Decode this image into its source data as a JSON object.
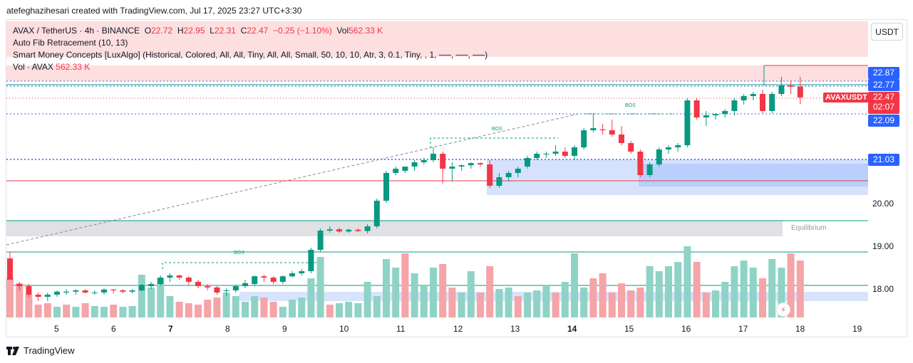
{
  "credit": "atefeghazihesari created with TradingView.com, Jul 17, 2025 23:27 UTC+3:30",
  "legend": {
    "symbol": "AVAX / TetherUS · 4h · BINANCE",
    "o_label": "O",
    "o_value": "22.72",
    "h_label": "H",
    "h_value": "22.95",
    "l_label": "L",
    "l_value": "22.31",
    "c_label": "C",
    "c_value": "22.47",
    "change": "−0.25 (−1.10%)",
    "vol_label": "Vol",
    "vol_value": "562.33 K",
    "indicator1": "Auto Fib Retracement (10, 13)",
    "indicator2": "Smart Money Concepts [LuxAlgo] (Historical, Colored, All, All, Tiny, All, All, Small, 50, 10, 10, Atr, 3, 0.1, Tiny, , 1, ──, ──, ──)",
    "indicator3_label": "Vol · AVAX",
    "indicator3_value": "562.33 K"
  },
  "currency_button": "USDT",
  "price_tags": {
    "p1": "22.87",
    "p2": "22.77",
    "last_symbol": "AVAXUSDT",
    "last_price": "22.47",
    "countdown": "02:07",
    "p3": "22.09",
    "p4": "21.03"
  },
  "y_axis_labels": [
    "20.00",
    "19.00",
    "18.00"
  ],
  "x_axis_labels": [
    {
      "text": "5",
      "bold": false
    },
    {
      "text": "6",
      "bold": false
    },
    {
      "text": "7",
      "bold": true
    },
    {
      "text": "8",
      "bold": false
    },
    {
      "text": "9",
      "bold": false
    },
    {
      "text": "10",
      "bold": false
    },
    {
      "text": "11",
      "bold": false
    },
    {
      "text": "12",
      "bold": false
    },
    {
      "text": "13",
      "bold": false
    },
    {
      "text": "14",
      "bold": true
    },
    {
      "text": "15",
      "bold": false
    },
    {
      "text": "16",
      "bold": false
    },
    {
      "text": "17",
      "bold": false
    },
    {
      "text": "18",
      "bold": false
    },
    {
      "text": "19",
      "bold": false
    }
  ],
  "annotations": {
    "equilibrium": "Equilibrium",
    "bos1": "BOS",
    "bos2": "BOS",
    "bos3": "BOS"
  },
  "brand": "TradingView",
  "colors": {
    "up": "#089981",
    "down": "#f23645",
    "up_vol": "#8fd3c6",
    "down_vol": "#f5a4a8",
    "premium_zone": "#fddfe0",
    "equilibrium_zone": "#e0e1e4",
    "order_block": "#c7d8fb",
    "accent_blue": "#2962ff"
  },
  "chart_data": {
    "type": "candlestick",
    "timeframe": "4h",
    "symbol": "AVAXUSDT",
    "ylim": [
      17.1,
      23.6
    ],
    "candles": [
      [
        18.7,
        18.85,
        18.2,
        18.2
      ],
      [
        18.1,
        18.15,
        17.95,
        18.05
      ],
      [
        18.05,
        18.1,
        17.8,
        17.85
      ],
      [
        17.85,
        17.9,
        17.7,
        17.8
      ],
      [
        17.8,
        17.9,
        17.7,
        17.85
      ],
      [
        17.85,
        17.95,
        17.8,
        17.92
      ],
      [
        17.9,
        17.98,
        17.85,
        17.92
      ],
      [
        17.92,
        17.98,
        17.85,
        17.95
      ],
      [
        17.95,
        17.98,
        17.88,
        17.9
      ],
      [
        17.9,
        17.95,
        17.85,
        17.9
      ],
      [
        17.9,
        18.0,
        17.85,
        17.97
      ],
      [
        17.97,
        17.99,
        17.88,
        17.95
      ],
      [
        17.95,
        17.98,
        17.88,
        17.92
      ],
      [
        17.92,
        17.98,
        17.88,
        17.95
      ],
      [
        17.95,
        18.1,
        17.93,
        18.08
      ],
      [
        18.05,
        18.15,
        17.98,
        18.1
      ],
      [
        18.1,
        18.3,
        18.05,
        18.25
      ],
      [
        18.25,
        18.35,
        18.15,
        18.3
      ],
      [
        18.3,
        18.32,
        18.2,
        18.25
      ],
      [
        18.25,
        18.28,
        18.08,
        18.15
      ],
      [
        18.15,
        18.2,
        18.0,
        18.05
      ],
      [
        18.05,
        18.1,
        17.95,
        18.02
      ],
      [
        18.02,
        18.05,
        17.85,
        17.9
      ],
      [
        17.95,
        18.0,
        17.82,
        17.95
      ],
      [
        17.95,
        18.08,
        17.9,
        18.05
      ],
      [
        18.05,
        18.2,
        18.0,
        18.12
      ],
      [
        18.1,
        18.3,
        18.05,
        18.28
      ],
      [
        18.28,
        18.32,
        18.15,
        18.25
      ],
      [
        18.25,
        18.28,
        18.1,
        18.15
      ],
      [
        18.15,
        18.3,
        18.1,
        18.28
      ],
      [
        18.28,
        18.4,
        18.25,
        18.35
      ],
      [
        18.35,
        18.45,
        18.3,
        18.4
      ],
      [
        18.4,
        18.95,
        18.35,
        18.9
      ],
      [
        18.9,
        19.4,
        18.85,
        19.35
      ],
      [
        19.35,
        19.45,
        19.3,
        19.38
      ],
      [
        19.38,
        19.42,
        19.3,
        19.33
      ],
      [
        19.33,
        19.4,
        19.3,
        19.37
      ],
      [
        19.37,
        19.4,
        19.32,
        19.34
      ],
      [
        19.34,
        19.5,
        19.28,
        19.45
      ],
      [
        19.45,
        20.1,
        19.4,
        20.05
      ],
      [
        20.05,
        20.75,
        20.0,
        20.7
      ],
      [
        20.7,
        20.85,
        20.65,
        20.8
      ],
      [
        20.75,
        20.85,
        20.7,
        20.85
      ],
      [
        20.85,
        21.0,
        20.75,
        20.95
      ],
      [
        20.95,
        21.05,
        20.9,
        21.0
      ],
      [
        21.0,
        21.3,
        20.95,
        21.15
      ],
      [
        21.15,
        21.2,
        20.45,
        20.8
      ],
      [
        20.8,
        20.95,
        20.5,
        20.85
      ],
      [
        20.85,
        20.9,
        20.75,
        20.88
      ],
      [
        20.88,
        20.95,
        20.8,
        20.93
      ],
      [
        20.93,
        20.95,
        20.85,
        20.9
      ],
      [
        20.9,
        21.0,
        20.35,
        20.4
      ],
      [
        20.4,
        20.7,
        20.35,
        20.6
      ],
      [
        20.6,
        20.75,
        20.5,
        20.7
      ],
      [
        20.7,
        20.85,
        20.6,
        20.8
      ],
      [
        20.85,
        21.1,
        20.8,
        21.05
      ],
      [
        21.05,
        21.2,
        21.0,
        21.15
      ],
      [
        21.15,
        21.2,
        21.05,
        21.15
      ],
      [
        21.15,
        21.35,
        21.1,
        21.2
      ],
      [
        21.2,
        21.3,
        21.05,
        21.1
      ],
      [
        21.1,
        21.35,
        21.0,
        21.3
      ],
      [
        21.3,
        21.75,
        21.25,
        21.7
      ],
      [
        21.7,
        22.1,
        21.65,
        21.75
      ],
      [
        21.72,
        21.85,
        21.6,
        21.7
      ],
      [
        21.7,
        21.95,
        21.55,
        21.6
      ],
      [
        21.6,
        21.8,
        21.35,
        21.4
      ],
      [
        21.4,
        21.45,
        21.15,
        21.2
      ],
      [
        21.2,
        21.25,
        20.6,
        20.65
      ],
      [
        20.65,
        20.95,
        20.6,
        20.9
      ],
      [
        20.9,
        21.3,
        20.85,
        21.25
      ],
      [
        21.25,
        21.35,
        21.15,
        21.3
      ],
      [
        21.3,
        21.4,
        21.2,
        21.35
      ],
      [
        21.35,
        22.45,
        21.3,
        22.4
      ],
      [
        22.4,
        22.45,
        21.95,
        22.0
      ],
      [
        22.0,
        22.15,
        21.8,
        22.05
      ],
      [
        22.05,
        22.1,
        21.95,
        22.08
      ],
      [
        22.08,
        22.2,
        22.0,
        22.15
      ],
      [
        22.15,
        22.45,
        22.05,
        22.4
      ],
      [
        22.4,
        22.55,
        22.3,
        22.5
      ],
      [
        22.5,
        22.6,
        22.4,
        22.55
      ],
      [
        22.55,
        22.65,
        22.1,
        22.15
      ],
      [
        22.15,
        22.6,
        22.1,
        22.55
      ],
      [
        22.55,
        22.95,
        22.5,
        22.75
      ],
      [
        22.75,
        22.85,
        22.55,
        22.72
      ],
      [
        22.72,
        22.95,
        22.31,
        22.47
      ]
    ],
    "volumes": [
      [
        0.55,
        0
      ],
      [
        0.48,
        0
      ],
      [
        0.32,
        0
      ],
      [
        0.18,
        0
      ],
      [
        0.2,
        0
      ],
      [
        0.15,
        1
      ],
      [
        0.18,
        0
      ],
      [
        0.15,
        1
      ],
      [
        0.2,
        0
      ],
      [
        0.16,
        1
      ],
      [
        0.15,
        1
      ],
      [
        0.18,
        0
      ],
      [
        0.15,
        1
      ],
      [
        0.16,
        1
      ],
      [
        0.6,
        1
      ],
      [
        0.42,
        1
      ],
      [
        0.55,
        1
      ],
      [
        0.3,
        1
      ],
      [
        0.22,
        0
      ],
      [
        0.2,
        0
      ],
      [
        0.18,
        0
      ],
      [
        0.25,
        0
      ],
      [
        0.28,
        0
      ],
      [
        0.35,
        1
      ],
      [
        0.3,
        1
      ],
      [
        0.22,
        1
      ],
      [
        0.3,
        1
      ],
      [
        0.28,
        0
      ],
      [
        0.22,
        0
      ],
      [
        0.15,
        1
      ],
      [
        0.25,
        1
      ],
      [
        0.28,
        1
      ],
      [
        0.55,
        1
      ],
      [
        0.85,
        1
      ],
      [
        0.18,
        0
      ],
      [
        0.2,
        1
      ],
      [
        0.22,
        1
      ],
      [
        0.2,
        1
      ],
      [
        0.5,
        1
      ],
      [
        0.3,
        1
      ],
      [
        0.82,
        1
      ],
      [
        0.7,
        1
      ],
      [
        0.9,
        0
      ],
      [
        0.62,
        1
      ],
      [
        0.45,
        1
      ],
      [
        0.7,
        1
      ],
      [
        0.75,
        0
      ],
      [
        0.42,
        0
      ],
      [
        0.35,
        1
      ],
      [
        0.65,
        1
      ],
      [
        0.35,
        0
      ],
      [
        0.72,
        0
      ],
      [
        0.4,
        1
      ],
      [
        0.42,
        1
      ],
      [
        0.3,
        0
      ],
      [
        0.35,
        1
      ],
      [
        0.38,
        1
      ],
      [
        0.45,
        1
      ],
      [
        0.35,
        0
      ],
      [
        0.5,
        1
      ],
      [
        0.9,
        1
      ],
      [
        0.42,
        1
      ],
      [
        0.55,
        0
      ],
      [
        0.62,
        0
      ],
      [
        0.35,
        0
      ],
      [
        0.48,
        0
      ],
      [
        0.38,
        0
      ],
      [
        0.42,
        0
      ],
      [
        0.72,
        1
      ],
      [
        0.65,
        1
      ],
      [
        0.72,
        1
      ],
      [
        0.78,
        1
      ],
      [
        1.0,
        1
      ],
      [
        0.78,
        0
      ],
      [
        0.35,
        0
      ],
      [
        0.38,
        1
      ],
      [
        0.5,
        1
      ],
      [
        0.72,
        1
      ],
      [
        0.8,
        1
      ],
      [
        0.7,
        1
      ],
      [
        0.55,
        0
      ],
      [
        0.82,
        1
      ],
      [
        0.7,
        1
      ],
      [
        0.9,
        0
      ],
      [
        0.8,
        0
      ]
    ],
    "horizontal_levels": [
      {
        "price": 22.87,
        "label": "22.87"
      },
      {
        "price": 22.77,
        "label": "22.77"
      },
      {
        "price": 22.09,
        "label": "22.09"
      },
      {
        "price": 21.03,
        "label": "21.03"
      }
    ]
  }
}
